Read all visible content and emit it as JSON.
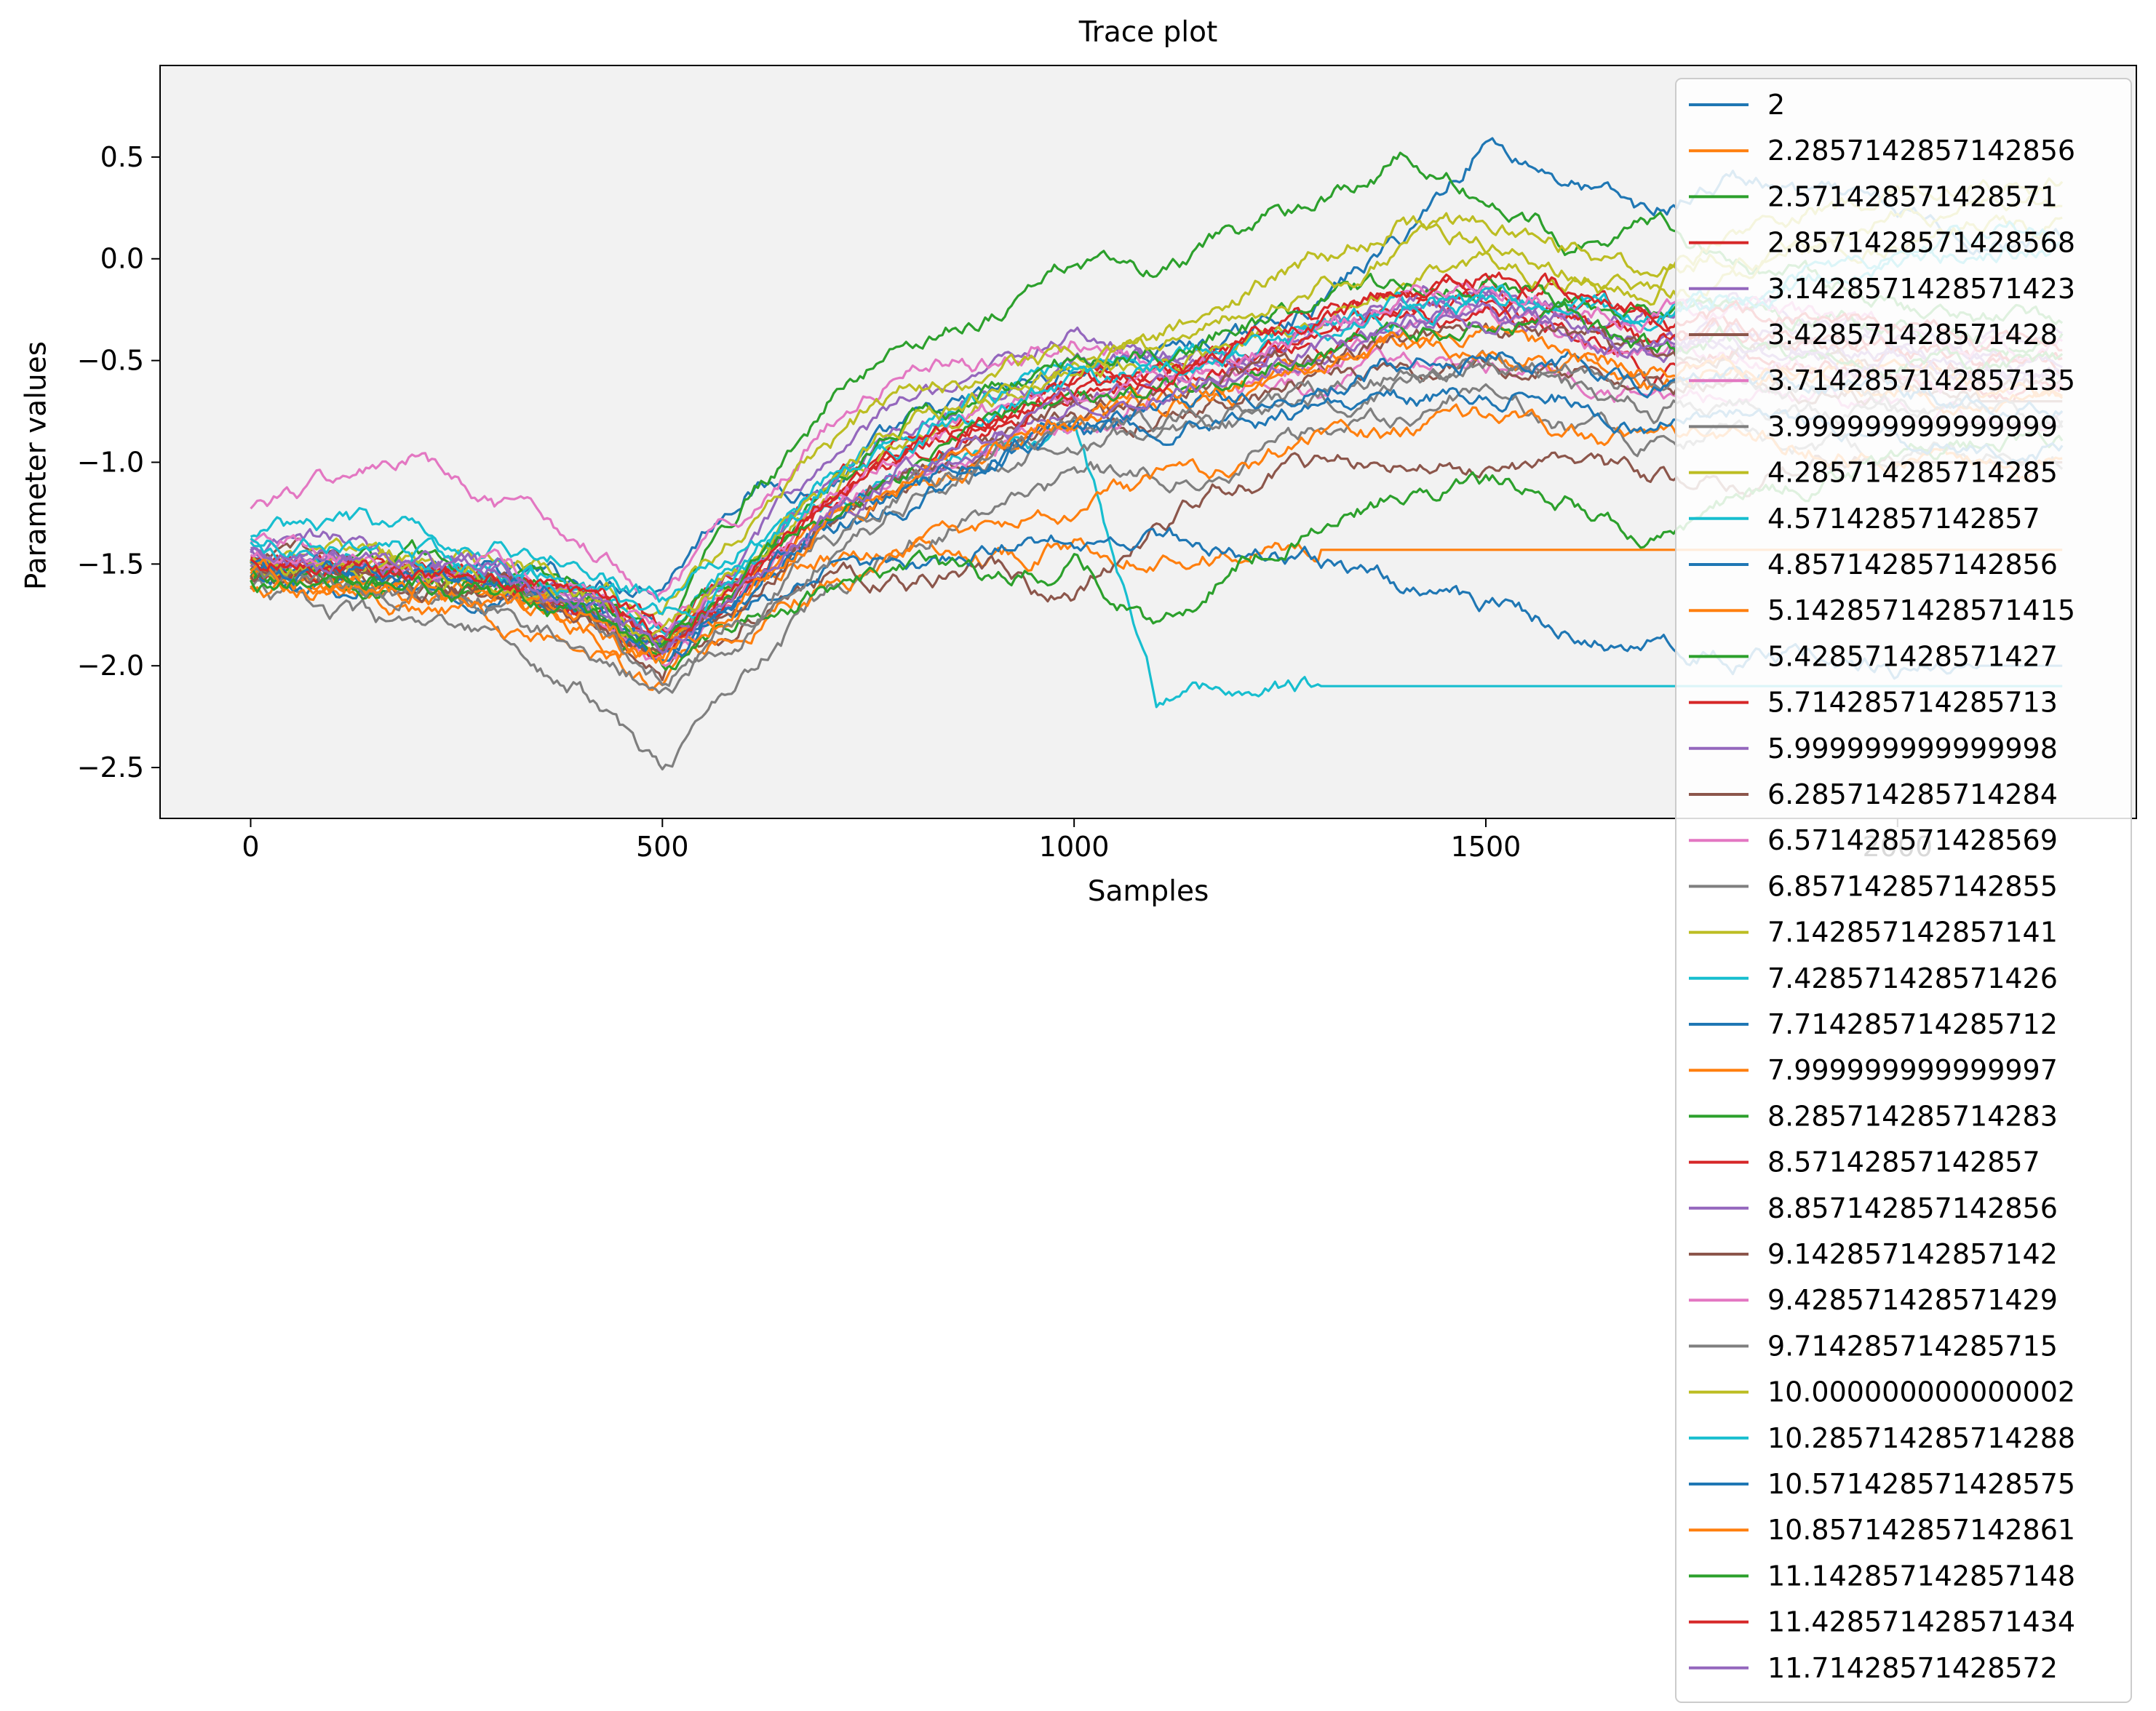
{
  "chart_data": {
    "type": "line",
    "title": "Trace plot",
    "xlabel": "Samples",
    "ylabel": "Parameter values",
    "xlim": [
      -110,
      2290
    ],
    "ylim": [
      -2.75,
      0.95
    ],
    "x_ticks": [
      "0",
      "500",
      "1000",
      "1500",
      "2000"
    ],
    "x_tick_values": [
      0,
      500,
      1000,
      1500,
      2000
    ],
    "y_ticks": [
      "0.5",
      "0.0",
      "−0.5",
      "−1.0",
      "−1.5",
      "−2.0",
      "−2.5"
    ],
    "y_tick_values": [
      0.5,
      0.0,
      -0.5,
      -1.0,
      -1.5,
      -2.0,
      -2.5
    ],
    "grid": false,
    "plot_background": "#f2f2f2",
    "legend_position": "upper-right",
    "x": [
      0,
      100,
      200,
      300,
      400,
      500,
      600,
      700,
      800,
      900,
      1000,
      1100,
      1200,
      1300,
      1400,
      1500,
      1600,
      1700,
      1800,
      1900,
      2000,
      2100,
      2200
    ],
    "series": [
      {
        "name": "2",
        "color": "#1f77b4",
        "values": [
          -1.5,
          -1.6,
          -1.45,
          -1.55,
          -1.6,
          -1.55,
          -1.1,
          -1.1,
          -0.85,
          -0.7,
          -0.55,
          -0.45,
          -0.4,
          -0.2,
          0.1,
          0.6,
          0.4,
          0.2,
          0.4,
          0.3,
          0.2,
          0.1,
          0.1
        ]
      },
      {
        "name": "2.2857142857142856",
        "color": "#ff7f0e",
        "values": [
          -1.55,
          -1.65,
          -1.6,
          -1.7,
          -1.8,
          -1.95,
          -1.55,
          -1.45,
          -1.4,
          -1.45,
          -1.4,
          -1.42,
          -1.43,
          -1.43,
          -1.43,
          -1.43,
          -1.43,
          -1.43,
          -1.43,
          -1.43,
          -1.43,
          -1.43,
          -1.43
        ]
      },
      {
        "name": "2.571428571428571",
        "color": "#2ca02c",
        "values": [
          -1.6,
          -1.5,
          -1.55,
          -1.55,
          -1.6,
          -1.8,
          -1.2,
          -0.7,
          -0.4,
          -0.25,
          0.0,
          -0.1,
          0.1,
          0.3,
          0.5,
          0.3,
          0.1,
          0.2,
          0.0,
          -0.1,
          -0.2,
          -0.3,
          -0.3
        ]
      },
      {
        "name": "2.8571428571428568",
        "color": "#d62728",
        "values": [
          -1.55,
          -1.5,
          -1.6,
          -1.55,
          -1.7,
          -1.85,
          -1.5,
          -1.1,
          -0.9,
          -0.75,
          -0.6,
          -0.55,
          -0.45,
          -0.3,
          -0.2,
          -0.1,
          -0.3,
          -0.55,
          -0.45,
          -0.5,
          -0.55,
          -0.6,
          -0.6
        ]
      },
      {
        "name": "3.1428571428571423",
        "color": "#9467bd",
        "values": [
          -1.45,
          -1.4,
          -1.5,
          -1.55,
          -1.7,
          -1.9,
          -1.45,
          -1.0,
          -0.7,
          -0.5,
          -0.35,
          -0.45,
          -0.5,
          -0.35,
          -0.15,
          -0.1,
          -0.25,
          -0.3,
          -0.25,
          -0.3,
          -0.35,
          -0.4,
          -0.4
        ]
      },
      {
        "name": "3.428571428571428",
        "color": "#8c564b",
        "values": [
          -1.5,
          -1.45,
          -1.6,
          -1.6,
          -1.75,
          -2.0,
          -1.75,
          -1.55,
          -1.6,
          -1.5,
          -1.7,
          -1.3,
          -1.1,
          -1.0,
          -1.05,
          -1.0,
          -1.0,
          -1.1,
          -1.05,
          -1.0,
          -1.0,
          -1.0,
          -1.0
        ]
      },
      {
        "name": "3.7142857142857135",
        "color": "#e377c2",
        "values": [
          -1.2,
          -1.1,
          -1.0,
          -1.25,
          -1.4,
          -1.6,
          -1.25,
          -0.8,
          -0.55,
          -0.5,
          -0.35,
          -0.5,
          -0.6,
          -0.6,
          -0.5,
          -0.55,
          -0.6,
          -0.7,
          -0.65,
          -0.7,
          -0.75,
          -0.8,
          -0.8
        ]
      },
      {
        "name": "3.999999999999999",
        "color": "#7f7f7f",
        "values": [
          -1.6,
          -1.75,
          -1.85,
          -1.9,
          -2.1,
          -2.55,
          -2.0,
          -1.65,
          -1.4,
          -1.25,
          -1.1,
          -1.05,
          -0.95,
          -0.85,
          -0.75,
          -0.6,
          -0.8,
          -0.9,
          -0.85,
          -0.9,
          -0.95,
          -1.0,
          -1.0
        ]
      },
      {
        "name": "4.285714285714285",
        "color": "#bcbd22",
        "values": [
          -1.5,
          -1.45,
          -1.5,
          -1.5,
          -1.6,
          -1.7,
          -1.3,
          -0.9,
          -0.65,
          -0.55,
          -0.45,
          -0.4,
          -0.2,
          0.0,
          0.2,
          0.1,
          -0.05,
          -0.1,
          0.1,
          0.2,
          0.3,
          0.35,
          0.35
        ]
      },
      {
        "name": "4.57142857142857",
        "color": "#17becf",
        "values": [
          -1.35,
          -1.3,
          -1.35,
          -1.4,
          -1.5,
          -1.7,
          -1.4,
          -1.2,
          -1.0,
          -0.95,
          -0.85,
          -2.2,
          -2.1,
          -2.1,
          -2.1,
          -2.1,
          -2.1,
          -2.1,
          -2.1,
          -2.1,
          -2.1,
          -2.1,
          -2.1
        ]
      },
      {
        "name": "4.857142857142856",
        "color": "#1f77b4",
        "values": [
          -1.55,
          -1.6,
          -1.6,
          -1.65,
          -1.7,
          -1.85,
          -1.7,
          -1.55,
          -1.5,
          -1.45,
          -1.4,
          -1.35,
          -1.45,
          -1.5,
          -1.6,
          -1.7,
          -1.8,
          -1.9,
          -1.95,
          -1.95,
          -2.0,
          -2.0,
          -2.0
        ]
      },
      {
        "name": "5.1428571428571415",
        "color": "#ff7f0e",
        "values": [
          -1.6,
          -1.65,
          -1.7,
          -1.75,
          -1.9,
          -2.1,
          -1.8,
          -1.6,
          -1.45,
          -1.3,
          -1.2,
          -1.1,
          -1.0,
          -0.9,
          -0.85,
          -0.8,
          -0.85,
          -0.9,
          -0.85,
          -0.9,
          -0.95,
          -1.0,
          -1.0
        ]
      },
      {
        "name": "5.428571428571427",
        "color": "#2ca02c",
        "values": [
          -1.55,
          -1.6,
          -1.55,
          -1.6,
          -1.75,
          -2.0,
          -1.75,
          -1.6,
          -1.55,
          -1.6,
          -1.5,
          -1.8,
          -1.5,
          -1.3,
          -1.15,
          -1.1,
          -1.2,
          -1.35,
          -1.2,
          -1.1,
          -1.0,
          -0.9,
          -0.9
        ]
      },
      {
        "name": "5.714285714285713",
        "color": "#d62728",
        "values": [
          -1.5,
          -1.55,
          -1.55,
          -1.6,
          -1.7,
          -1.9,
          -1.6,
          -1.2,
          -0.9,
          -0.75,
          -0.6,
          -0.6,
          -0.5,
          -0.4,
          -0.3,
          -0.2,
          -0.15,
          -0.3,
          -0.35,
          -0.4,
          -0.45,
          -0.5,
          -0.5
        ]
      },
      {
        "name": "5.999999999999998",
        "color": "#9467bd",
        "values": [
          -1.45,
          -1.5,
          -1.5,
          -1.55,
          -1.65,
          -1.85,
          -1.5,
          -1.1,
          -0.85,
          -0.7,
          -0.55,
          -0.5,
          -0.45,
          -0.35,
          -0.25,
          -0.2,
          -0.3,
          -0.4,
          -0.35,
          -0.4,
          -0.45,
          -0.5,
          -0.5
        ]
      },
      {
        "name": "6.285714285714284",
        "color": "#8c564b",
        "values": [
          -1.5,
          -1.55,
          -1.6,
          -1.6,
          -1.7,
          -1.9,
          -1.6,
          -1.3,
          -1.1,
          -0.95,
          -0.8,
          -0.75,
          -0.7,
          -0.6,
          -0.55,
          -0.5,
          -0.55,
          -0.6,
          -0.6,
          -0.65,
          -0.7,
          -0.7,
          -0.7
        ]
      },
      {
        "name": "6.571428571428569",
        "color": "#e377c2",
        "values": [
          -1.4,
          -1.45,
          -1.5,
          -1.55,
          -1.7,
          -2.0,
          -1.65,
          -1.3,
          -1.05,
          -0.9,
          -0.75,
          -0.65,
          -0.6,
          -0.5,
          -0.4,
          -0.3,
          -0.4,
          -0.5,
          -0.45,
          -0.5,
          -0.55,
          -0.6,
          -0.6
        ]
      },
      {
        "name": "6.857142857142855",
        "color": "#7f7f7f",
        "values": [
          -1.55,
          -1.6,
          -1.65,
          -1.7,
          -1.85,
          -2.1,
          -1.8,
          -1.45,
          -1.2,
          -1.05,
          -0.9,
          -0.85,
          -0.8,
          -0.7,
          -0.6,
          -0.55,
          -0.65,
          -0.75,
          -0.7,
          -0.75,
          -0.8,
          -0.85,
          -0.85
        ]
      },
      {
        "name": "7.142857142857141",
        "color": "#bcbd22",
        "values": [
          -1.5,
          -1.5,
          -1.55,
          -1.6,
          -1.7,
          -1.9,
          -1.55,
          -1.15,
          -0.85,
          -0.7,
          -0.55,
          -0.5,
          -0.4,
          -0.25,
          -0.1,
          0.0,
          -0.1,
          -0.2,
          -0.1,
          0.0,
          0.1,
          0.15,
          0.15
        ]
      },
      {
        "name": "7.428571428571426",
        "color": "#17becf",
        "values": [
          -1.4,
          -1.45,
          -1.45,
          -1.5,
          -1.6,
          -1.8,
          -1.45,
          -1.1,
          -0.85,
          -0.7,
          -0.55,
          -0.5,
          -0.45,
          -0.35,
          -0.25,
          -0.2,
          -0.25,
          -0.3,
          -0.2,
          -0.1,
          0.0,
          0.1,
          0.1
        ]
      },
      {
        "name": "7.714285714285712",
        "color": "#1f77b4",
        "values": [
          -1.5,
          -1.55,
          -1.55,
          -1.6,
          -1.75,
          -1.95,
          -1.65,
          -1.35,
          -1.15,
          -1.0,
          -0.9,
          -0.85,
          -0.8,
          -0.75,
          -0.7,
          -0.65,
          -0.7,
          -0.8,
          -0.75,
          -0.8,
          -0.85,
          -0.9,
          -0.9
        ]
      },
      {
        "name": "7.999999999999997",
        "color": "#ff7f0e",
        "values": [
          -1.55,
          -1.6,
          -1.6,
          -1.65,
          -1.8,
          -2.0,
          -1.7,
          -1.35,
          -1.1,
          -0.95,
          -0.8,
          -0.75,
          -0.65,
          -0.55,
          -0.45,
          -0.4,
          -0.5,
          -0.6,
          -0.55,
          -0.6,
          -0.65,
          -0.7,
          -0.7
        ]
      },
      {
        "name": "8.285714285714283",
        "color": "#2ca02c",
        "values": [
          -1.5,
          -1.55,
          -1.5,
          -1.55,
          -1.65,
          -1.85,
          -1.5,
          -1.1,
          -0.8,
          -0.65,
          -0.5,
          -0.45,
          -0.35,
          -0.25,
          -0.15,
          -0.1,
          -0.2,
          -0.3,
          -0.25,
          -0.3,
          -0.35,
          -0.4,
          -0.4
        ]
      },
      {
        "name": "8.57142857142857",
        "color": "#d62728",
        "values": [
          -1.45,
          -1.5,
          -1.5,
          -1.55,
          -1.65,
          -1.85,
          -1.55,
          -1.2,
          -0.95,
          -0.8,
          -0.65,
          -0.6,
          -0.5,
          -0.4,
          -0.3,
          -0.25,
          -0.3,
          -0.4,
          -0.35,
          -0.4,
          -0.45,
          -0.5,
          -0.5
        ]
      },
      {
        "name": "8.857142857142856",
        "color": "#9467bd",
        "values": [
          -1.5,
          -1.5,
          -1.55,
          -1.55,
          -1.7,
          -1.9,
          -1.6,
          -1.25,
          -1.0,
          -0.85,
          -0.7,
          -0.65,
          -0.55,
          -0.45,
          -0.35,
          -0.3,
          -0.35,
          -0.45,
          -0.4,
          -0.45,
          -0.5,
          -0.55,
          -0.55
        ]
      },
      {
        "name": "9.142857142857142",
        "color": "#8c564b",
        "values": [
          -1.55,
          -1.55,
          -1.6,
          -1.6,
          -1.75,
          -1.95,
          -1.65,
          -1.3,
          -1.05,
          -0.9,
          -0.75,
          -0.7,
          -0.6,
          -0.5,
          -0.4,
          -0.35,
          -0.4,
          -0.5,
          -0.45,
          -0.5,
          -0.55,
          -0.6,
          -0.6
        ]
      },
      {
        "name": "9.428571428571429",
        "color": "#e377c2",
        "values": [
          -1.45,
          -1.45,
          -1.5,
          -1.55,
          -1.65,
          -1.85,
          -1.55,
          -1.2,
          -0.95,
          -0.8,
          -0.65,
          -0.6,
          -0.5,
          -0.35,
          -0.2,
          -0.1,
          -0.2,
          -0.3,
          -0.25,
          -0.3,
          -0.35,
          -0.4,
          -0.4
        ]
      },
      {
        "name": "9.714285714285715",
        "color": "#7f7f7f",
        "values": [
          -1.5,
          -1.55,
          -1.6,
          -1.65,
          -1.8,
          -2.05,
          -1.75,
          -1.4,
          -1.15,
          -1.0,
          -0.85,
          -0.8,
          -0.75,
          -0.65,
          -0.55,
          -0.5,
          -0.55,
          -0.65,
          -0.6,
          -0.65,
          -0.7,
          -0.75,
          -0.75
        ]
      },
      {
        "name": "10.000000000000002",
        "color": "#bcbd22",
        "values": [
          -1.5,
          -1.5,
          -1.55,
          -1.55,
          -1.65,
          -1.85,
          -1.5,
          -1.1,
          -0.8,
          -0.65,
          -0.5,
          -0.45,
          -0.3,
          -0.15,
          0.05,
          0.15,
          0.05,
          -0.05,
          0.05,
          0.1,
          0.2,
          0.25,
          0.25
        ]
      },
      {
        "name": "10.285714285714288",
        "color": "#17becf",
        "values": [
          -1.4,
          -1.4,
          -1.45,
          -1.5,
          -1.6,
          -1.8,
          -1.5,
          -1.15,
          -0.9,
          -0.75,
          -0.6,
          -0.55,
          -0.45,
          -0.35,
          -0.25,
          -0.2,
          -0.25,
          -0.3,
          -0.2,
          -0.1,
          0.0,
          0.05,
          0.05
        ]
      },
      {
        "name": "10.571428571428575",
        "color": "#1f77b4",
        "values": [
          -1.5,
          -1.55,
          -1.55,
          -1.6,
          -1.7,
          -1.9,
          -1.6,
          -1.3,
          -1.1,
          -0.95,
          -0.8,
          -0.75,
          -0.7,
          -0.6,
          -0.5,
          -0.45,
          -0.5,
          -0.6,
          -0.55,
          -0.6,
          -0.65,
          -0.7,
          -0.7
        ]
      },
      {
        "name": "10.857142857142861",
        "color": "#ff7f0e",
        "values": [
          -1.55,
          -1.6,
          -1.6,
          -1.65,
          -1.75,
          -1.95,
          -1.65,
          -1.3,
          -1.05,
          -0.9,
          -0.75,
          -0.7,
          -0.6,
          -0.5,
          -0.4,
          -0.35,
          -0.45,
          -0.55,
          -0.5,
          -0.55,
          -0.6,
          -0.65,
          -0.65
        ]
      },
      {
        "name": "11.142857142857148",
        "color": "#2ca02c",
        "values": [
          -1.6,
          -1.65,
          -1.6,
          -1.65,
          -1.75,
          -1.95,
          -1.6,
          -1.25,
          -1.0,
          -0.85,
          -0.7,
          -0.65,
          -0.55,
          -0.45,
          -0.35,
          -0.3,
          -0.35,
          -0.45,
          -0.4,
          -0.45,
          -0.5,
          -0.55,
          -0.55
        ]
      },
      {
        "name": "11.428571428571434",
        "color": "#d62728",
        "values": [
          -1.5,
          -1.5,
          -1.55,
          -1.55,
          -1.65,
          -1.85,
          -1.55,
          -1.2,
          -0.95,
          -0.8,
          -0.65,
          -0.6,
          -0.45,
          -0.3,
          -0.15,
          -0.05,
          -0.15,
          -0.3,
          -0.25,
          -0.3,
          -0.35,
          -0.4,
          -0.4
        ]
      },
      {
        "name": "11.71428571428572",
        "color": "#9467bd",
        "values": [
          -1.45,
          -1.5,
          -1.5,
          -1.55,
          -1.7,
          -1.9,
          -1.6,
          -1.25,
          -1.0,
          -0.85,
          -0.7,
          -0.65,
          -0.55,
          -0.45,
          -0.35,
          -0.3,
          -0.35,
          -0.45,
          -0.4,
          -0.45,
          -0.5,
          -0.55,
          -0.55
        ]
      }
    ]
  }
}
